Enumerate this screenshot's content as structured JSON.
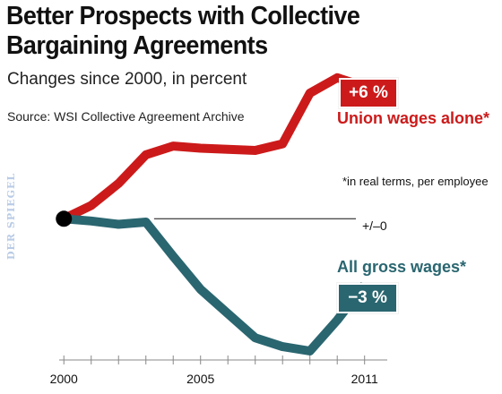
{
  "chart_data": {
    "type": "line",
    "title": "Better Prospects with Collective Bargaining Agreements",
    "subtitle": "Changes since 2000, in percent",
    "source": "Source: WSI Collective Agreement Archive",
    "footnote": "*in real terms, per employee",
    "zero_label": "+/–0",
    "x_ticks": [
      2000,
      2005,
      2011
    ],
    "xlim": [
      1999.5,
      2011.6
    ],
    "ylim": [
      -6,
      7
    ],
    "series": [
      {
        "name": "Union wages alone*",
        "badge": "+6 %",
        "color": "#cc1a1a",
        "x": [
          2000,
          2001,
          2002,
          2003,
          2004,
          2005,
          2006,
          2007,
          2008,
          2009,
          2010,
          2011
        ],
        "values": [
          0,
          0.6,
          1.6,
          2.9,
          3.3,
          3.2,
          3.15,
          3.1,
          3.4,
          5.7,
          6.4,
          6.0
        ]
      },
      {
        "name": "All gross wages*",
        "badge": "−3 %",
        "color": "#2a6670",
        "x": [
          2000,
          2001,
          2002,
          2003,
          2004,
          2005,
          2006,
          2007,
          2008,
          2009,
          2010,
          2011
        ],
        "values": [
          0,
          -0.1,
          -0.25,
          -0.15,
          -1.7,
          -3.2,
          -4.3,
          -5.4,
          -5.8,
          -6.0,
          -4.6,
          -3.0
        ]
      }
    ]
  },
  "watermark": "DER SPIEGEL"
}
